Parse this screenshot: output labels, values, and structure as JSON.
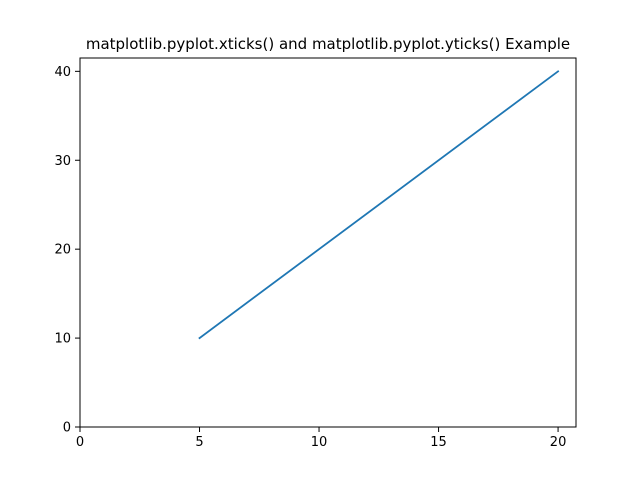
{
  "chart_data": {
    "type": "line",
    "title": "matplotlib.pyplot.xticks() and matplotlib.pyplot.yticks() Example",
    "xlabel": "",
    "ylabel": "",
    "x": [
      5,
      20
    ],
    "series": [
      {
        "values": [
          10,
          40
        ],
        "color": "#1f77b4"
      }
    ],
    "xlim": [
      0,
      20.75
    ],
    "ylim": [
      0,
      41.5
    ],
    "xticks": [
      0,
      5,
      10,
      15,
      20
    ],
    "yticks": [
      0,
      10,
      20,
      30,
      40
    ],
    "grid": false,
    "legend": "none"
  }
}
